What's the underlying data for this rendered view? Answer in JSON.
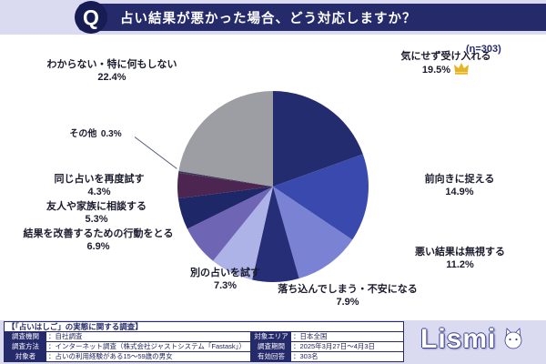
{
  "header": {
    "q_icon": "Q",
    "title": "占い結果が悪かった場合、どう対応しますか？",
    "sample_size": "(n=303)"
  },
  "chart_data": {
    "type": "pie",
    "title": "占い結果が悪かった場合、どう対応しますか？",
    "sample_size_n": 303,
    "start_angle": "top",
    "direction": "clockwise",
    "legend_position": "outside-labels",
    "segments": [
      {
        "label": "気にせず受け入れる",
        "value": 19.5,
        "pct": "19.5%",
        "color": "#232c6e",
        "crown": true
      },
      {
        "label": "前向きに捉える",
        "value": 14.9,
        "pct": "14.9%",
        "color": "#3a49ae"
      },
      {
        "label": "悪い結果は無視する",
        "value": 11.2,
        "pct": "11.2%",
        "color": "#7a82d4"
      },
      {
        "label": "落ち込んでしまう・不安になる",
        "value": 7.9,
        "pct": "7.9%",
        "color": "#262e78"
      },
      {
        "label": "別の占いを試す",
        "value": 7.3,
        "pct": "7.3%",
        "color": "#adb3e6"
      },
      {
        "label": "結果を改善するための行動をとる",
        "value": 6.9,
        "pct": "6.9%",
        "color": "#6e66b5"
      },
      {
        "label": "友人や家族に相談する",
        "value": 5.3,
        "pct": "5.3%",
        "color": "#1e2767"
      },
      {
        "label": "同じ占いを再度試す",
        "value": 4.3,
        "pct": "4.3%",
        "color": "#4c2650"
      },
      {
        "label": "その他",
        "value": 0.3,
        "pct": "0.3%",
        "color": "#3a3a55"
      },
      {
        "label": "わからない・特に何もしない",
        "value": 22.4,
        "pct": "22.4%",
        "color": "#9d9da4"
      }
    ]
  },
  "footer": {
    "survey_title": "【「占いはしご」の実態に関する調査】",
    "rows_left": [
      {
        "label": "調査機関",
        "value": "：自社調査"
      },
      {
        "label": "調査方法",
        "value": "：インターネット調査（株式会社ジャストシステム「Fastask」）"
      },
      {
        "label": "対象者",
        "value": "：占いの利用経験がある15～59歳の男女"
      }
    ],
    "rows_right": [
      {
        "label": "対象エリア",
        "value": "：日本全国"
      },
      {
        "label": "調査期間",
        "value": "：2025年3月27日～4月3日"
      },
      {
        "label": "有効回答",
        "value": "：303名"
      }
    ],
    "logo": "Lismi"
  }
}
